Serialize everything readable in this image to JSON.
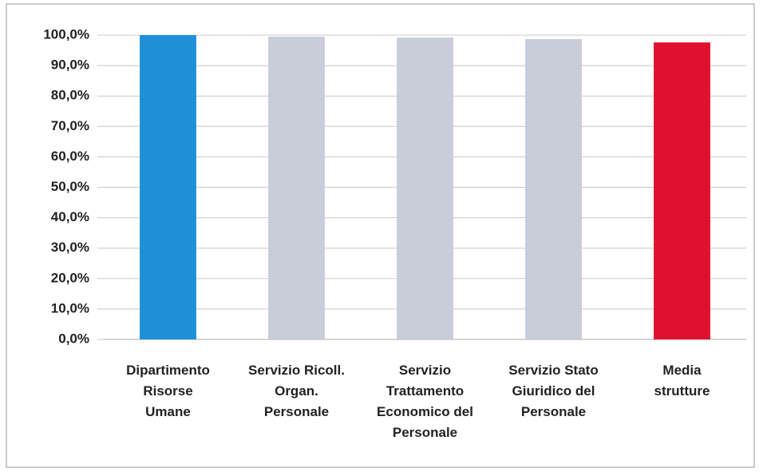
{
  "chart_data": {
    "type": "bar",
    "categories": [
      [
        "Dipartimento",
        "Risorse",
        "Umane"
      ],
      [
        "Servizio Ricoll.",
        "Organ.",
        "Personale"
      ],
      [
        "Servizio",
        "Trattamento",
        "Economico del",
        "Personale"
      ],
      [
        "Servizio Stato",
        "Giuridico del",
        "Personale"
      ],
      [
        "Media",
        "strutture"
      ]
    ],
    "values": [
      100,
      99.5,
      99.2,
      98.7,
      97.6
    ],
    "colors": [
      "#1f8fd8",
      "#c9ccd9",
      "#c9ccd9",
      "#c9ccd9",
      "#e0112f"
    ],
    "ylim": [
      0,
      100
    ],
    "yticks": [
      {
        "value": 0,
        "label": "0,0%"
      },
      {
        "value": 10,
        "label": "10,0%"
      },
      {
        "value": 20,
        "label": "20,0%"
      },
      {
        "value": 30,
        "label": "30,0%"
      },
      {
        "value": 40,
        "label": "40,0%"
      },
      {
        "value": 50,
        "label": "50,0%"
      },
      {
        "value": 60,
        "label": "60,0%"
      },
      {
        "value": 70,
        "label": "70,0%"
      },
      {
        "value": 80,
        "label": "80,0%"
      },
      {
        "value": 90,
        "label": "90,0%"
      },
      {
        "value": 100,
        "label": "100,0%"
      }
    ],
    "grid": true
  }
}
